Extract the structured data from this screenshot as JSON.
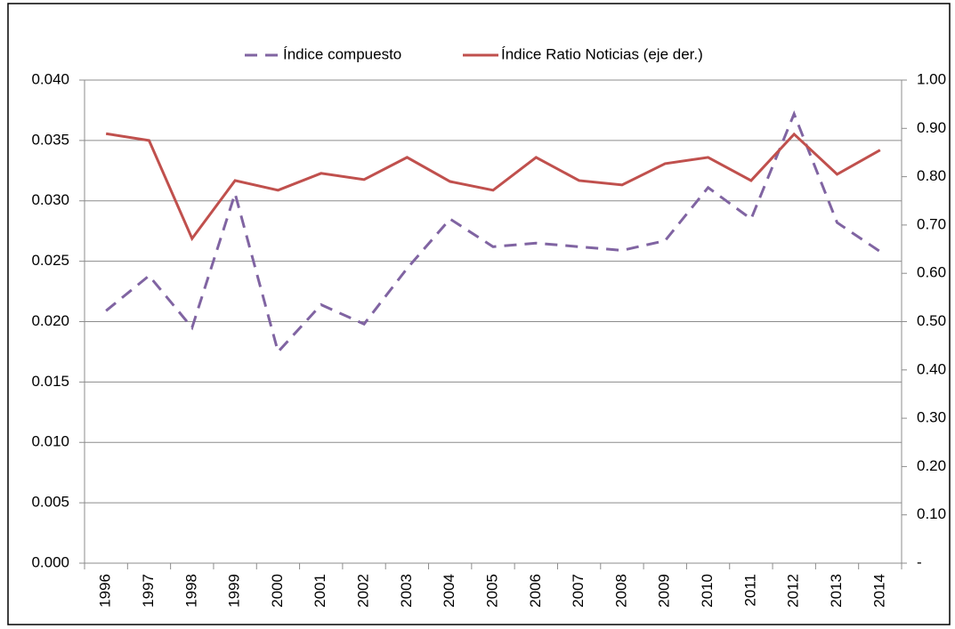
{
  "chart_data": {
    "type": "line",
    "categories": [
      "1996",
      "1997",
      "1998",
      "1999",
      "2000",
      "2001",
      "2002",
      "2003",
      "2004",
      "2005",
      "2006",
      "2007",
      "2008",
      "2009",
      "2010",
      "2011",
      "2012",
      "2013",
      "2014"
    ],
    "series": [
      {
        "name": "Índice compuesto",
        "color": "#8064a2",
        "dashed": true,
        "values": [
          0.0209,
          0.0238,
          0.0195,
          0.0306,
          0.0175,
          0.0214,
          0.0198,
          0.0244,
          0.0285,
          0.0262,
          0.0265,
          0.0262,
          0.0259,
          0.0267,
          0.0311,
          0.0285,
          0.0372,
          0.0282,
          0.0258
        ]
      },
      {
        "name": "Índice Ratio Noticias (eje der.)",
        "color": "#c0504d",
        "axis": "y2",
        "values": [
          0.889,
          0.875,
          0.672,
          0.792,
          0.772,
          0.807,
          0.794,
          0.84,
          0.79,
          0.772,
          0.84,
          0.792,
          0.783,
          0.827,
          0.84,
          0.792,
          0.888,
          0.805,
          0.855
        ]
      }
    ],
    "ylim": [
      0,
      0.04
    ],
    "yticks": [
      {
        "value": 0,
        "label": "0.000"
      },
      {
        "value": 0.005,
        "label": "0.005"
      },
      {
        "value": 0.01,
        "label": "0.010"
      },
      {
        "value": 0.015,
        "label": "0.015"
      },
      {
        "value": 0.02,
        "label": "0.020"
      },
      {
        "value": 0.025,
        "label": "0.025"
      },
      {
        "value": 0.03,
        "label": "0.030"
      },
      {
        "value": 0.035,
        "label": "0.035"
      },
      {
        "value": 0.04,
        "label": "0.040"
      }
    ],
    "y2lim": [
      0,
      1
    ],
    "y2ticks": [
      {
        "value": 0,
        "label": "-"
      },
      {
        "value": 0.1,
        "label": "0.10"
      },
      {
        "value": 0.2,
        "label": "0.20"
      },
      {
        "value": 0.3,
        "label": "0.30"
      },
      {
        "value": 0.4,
        "label": "0.40"
      },
      {
        "value": 0.5,
        "label": "0.50"
      },
      {
        "value": 0.6,
        "label": "0.60"
      },
      {
        "value": 0.7,
        "label": "0.70"
      },
      {
        "value": 0.8,
        "label": "0.80"
      },
      {
        "value": 0.9,
        "label": "0.90"
      },
      {
        "value": 1,
        "label": "1.00"
      }
    ],
    "grid": true,
    "legend": "top"
  }
}
